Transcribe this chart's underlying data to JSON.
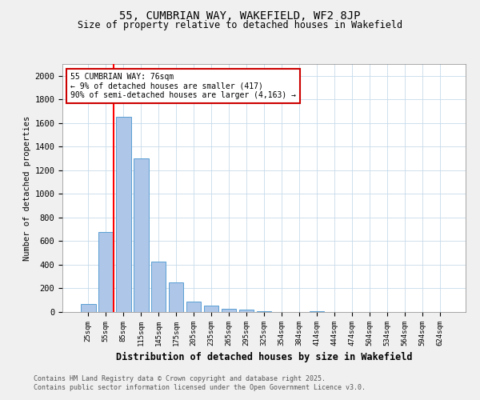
{
  "title1": "55, CUMBRIAN WAY, WAKEFIELD, WF2 8JP",
  "title2": "Size of property relative to detached houses in Wakefield",
  "xlabel": "Distribution of detached houses by size in Wakefield",
  "ylabel": "Number of detached properties",
  "categories": [
    "25sqm",
    "55sqm",
    "85sqm",
    "115sqm",
    "145sqm",
    "175sqm",
    "205sqm",
    "235sqm",
    "265sqm",
    "295sqm",
    "325sqm",
    "354sqm",
    "384sqm",
    "414sqm",
    "444sqm",
    "474sqm",
    "504sqm",
    "534sqm",
    "564sqm",
    "594sqm",
    "624sqm"
  ],
  "values": [
    70,
    680,
    1650,
    1300,
    430,
    250,
    90,
    55,
    30,
    20,
    10,
    0,
    0,
    10,
    0,
    0,
    0,
    0,
    0,
    0,
    0
  ],
  "bar_color": "#aec6e8",
  "bar_edgecolor": "#5a9fd4",
  "redline_x": 1.45,
  "annotation_title": "55 CUMBRIAN WAY: 76sqm",
  "annotation_line1": "← 9% of detached houses are smaller (417)",
  "annotation_line2": "90% of semi-detached houses are larger (4,163) →",
  "annotation_box_facecolor": "#ffffff",
  "annotation_box_edgecolor": "#cc0000",
  "ylim": [
    0,
    2100
  ],
  "yticks": [
    0,
    200,
    400,
    600,
    800,
    1000,
    1200,
    1400,
    1600,
    1800,
    2000
  ],
  "footer1": "Contains HM Land Registry data © Crown copyright and database right 2025.",
  "footer2": "Contains public sector information licensed under the Open Government Licence v3.0.",
  "bg_color": "#f0f0f0",
  "plot_bg_color": "#ffffff",
  "grid_color": "#c8daea"
}
